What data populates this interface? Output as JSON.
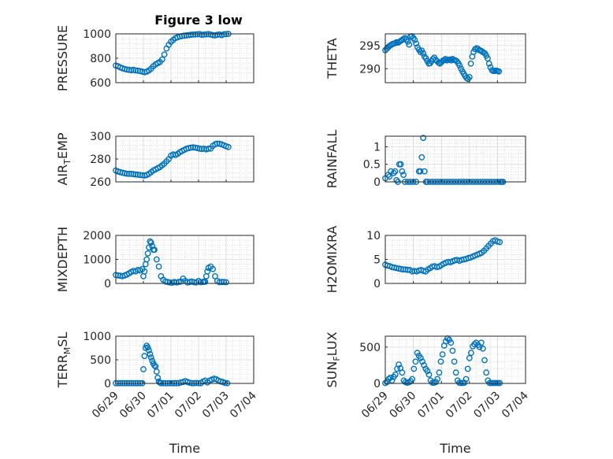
{
  "figure": {
    "title": "Figure 3 low"
  },
  "style": {
    "marker_color": "#0072BD",
    "axis_color": "#262626",
    "grid_color": "#dcdcdc"
  },
  "chart_data": [
    {
      "type": "scatter",
      "ylabel": "PRESSURE",
      "ylim": [
        600,
        1000
      ],
      "yticks": [
        "600",
        "800",
        "1000"
      ],
      "ytick_values": [
        600,
        800,
        1000
      ],
      "xlabel": "",
      "xticks": [
        "06/29",
        "06/30",
        "07/01",
        "07/02",
        "07/03",
        "07/04"
      ],
      "xlim": [
        0,
        5
      ],
      "grid": true,
      "x": [
        0.0,
        0.08,
        0.16,
        0.24,
        0.32,
        0.4,
        0.48,
        0.56,
        0.64,
        0.72,
        0.8,
        0.88,
        0.96,
        1.04,
        1.12,
        1.2,
        1.28,
        1.36,
        1.44,
        1.52,
        1.6,
        1.68,
        1.76,
        1.84,
        1.92,
        2.0,
        2.08,
        2.16,
        2.24,
        2.32,
        2.4,
        2.48,
        2.56,
        2.64,
        2.72,
        2.8,
        2.88,
        2.96,
        3.04,
        3.12,
        3.2,
        3.28,
        3.36,
        3.44,
        3.52,
        3.6,
        3.68,
        3.76,
        3.84,
        3.92,
        4.0,
        4.08
      ],
      "y": [
        740,
        735,
        725,
        718,
        712,
        708,
        705,
        702,
        705,
        700,
        698,
        695,
        690,
        685,
        690,
        700,
        715,
        735,
        750,
        760,
        770,
        790,
        830,
        880,
        910,
        935,
        950,
        965,
        972,
        978,
        982,
        985,
        988,
        990,
        992,
        994,
        995,
        997,
        998,
        992,
        994,
        996,
        998,
        994,
        990,
        988,
        992,
        995,
        990,
        997,
        998,
        1000
      ]
    },
    {
      "type": "scatter",
      "ylabel": "THETA",
      "ylim": [
        287,
        297.5
      ],
      "yticks": [
        "290",
        "295"
      ],
      "ytick_values": [
        290,
        295
      ],
      "xlabel": "",
      "xticks": [
        "06/29",
        "06/30",
        "07/01",
        "07/02",
        "07/03",
        "07/04"
      ],
      "xlim": [
        0,
        5
      ],
      "grid": true,
      "x": [
        0.0,
        0.05,
        0.1,
        0.15,
        0.2,
        0.25,
        0.3,
        0.35,
        0.4,
        0.45,
        0.5,
        0.55,
        0.6,
        0.65,
        0.7,
        0.75,
        0.8,
        0.85,
        0.9,
        0.95,
        1.0,
        1.05,
        1.1,
        1.15,
        1.2,
        1.25,
        1.3,
        1.35,
        1.4,
        1.45,
        1.5,
        1.55,
        1.6,
        1.65,
        1.7,
        1.75,
        1.8,
        1.85,
        1.9,
        1.95,
        2.0,
        2.05,
        2.1,
        2.15,
        2.2,
        2.25,
        2.3,
        2.35,
        2.4,
        2.45,
        2.5,
        2.55,
        2.6,
        2.65,
        2.7,
        2.75,
        2.8,
        2.85,
        2.9,
        2.95,
        3.0,
        3.05,
        3.1,
        3.15,
        3.2,
        3.25,
        3.3,
        3.35,
        3.4,
        3.45,
        3.5,
        3.55,
        3.6,
        3.65,
        3.7,
        3.75,
        3.8,
        3.85,
        3.9,
        3.95,
        4.0,
        4.05
      ],
      "y": [
        294.0,
        294.3,
        294.6,
        294.9,
        295.1,
        295.3,
        295.4,
        295.5,
        295.7,
        295.6,
        295.8,
        296.0,
        296.2,
        296.4,
        296.6,
        296.3,
        295.8,
        295.2,
        296.9,
        297.0,
        296.6,
        296.2,
        295.4,
        294.6,
        294.1,
        293.6,
        293.9,
        293.3,
        292.6,
        292.2,
        291.6,
        291.1,
        291.2,
        291.6,
        292.1,
        292.4,
        291.9,
        291.6,
        291.3,
        291.1,
        291.4,
        291.7,
        291.9,
        292.1,
        291.8,
        291.9,
        292.0,
        291.8,
        292.1,
        291.9,
        291.8,
        291.6,
        291.2,
        290.7,
        290.0,
        289.4,
        288.9,
        288.4,
        288.0,
        287.8,
        288.2,
        291.1,
        292.6,
        293.6,
        294.2,
        294.4,
        294.3,
        294.0,
        293.9,
        293.7,
        293.5,
        293.3,
        292.8,
        292.2,
        291.1,
        290.3,
        289.7,
        289.5,
        289.5,
        289.6,
        289.5,
        289.4
      ]
    },
    {
      "type": "scatter",
      "ylabel": "AIR_TEMP",
      "ylim": [
        260,
        300
      ],
      "yticks": [
        "260",
        "280",
        "300"
      ],
      "ytick_values": [
        260,
        280,
        300
      ],
      "xlabel": "",
      "xticks": [
        "06/29",
        "06/30",
        "07/01",
        "07/02",
        "07/03",
        "07/04"
      ],
      "xlim": [
        0,
        5
      ],
      "grid": true,
      "x": [
        0.0,
        0.08,
        0.16,
        0.24,
        0.32,
        0.4,
        0.48,
        0.56,
        0.64,
        0.72,
        0.8,
        0.88,
        0.96,
        1.04,
        1.12,
        1.2,
        1.28,
        1.36,
        1.44,
        1.52,
        1.6,
        1.68,
        1.76,
        1.84,
        1.92,
        2.0,
        2.08,
        2.16,
        2.24,
        2.32,
        2.4,
        2.48,
        2.56,
        2.64,
        2.72,
        2.8,
        2.88,
        2.96,
        3.04,
        3.12,
        3.2,
        3.28,
        3.36,
        3.44,
        3.52,
        3.6,
        3.68,
        3.76,
        3.84,
        3.92,
        4.0,
        4.08
      ],
      "y": [
        270,
        269,
        268.5,
        268,
        267.6,
        267.2,
        267,
        267,
        266.8,
        266.5,
        266.3,
        266,
        265.8,
        265.5,
        266,
        267,
        268.5,
        270,
        271,
        272,
        273,
        274.5,
        276,
        278,
        280,
        283,
        284,
        283.5,
        284.5,
        286,
        287,
        288,
        289,
        289.5,
        290,
        290.2,
        290,
        289.6,
        289,
        288.8,
        289,
        288.5,
        289,
        289.2,
        291.5,
        293,
        293.5,
        293.3,
        292.8,
        292,
        291.2,
        290.5
      ]
    },
    {
      "type": "scatter",
      "ylabel": "RAINFALL",
      "ylim": [
        0,
        1.3
      ],
      "yticks": [
        "0",
        "0.5",
        "1"
      ],
      "ytick_values": [
        0,
        0.5,
        1
      ],
      "xlabel": "",
      "xticks": [
        "06/29",
        "06/30",
        "07/01",
        "07/02",
        "07/03",
        "07/04"
      ],
      "xlim": [
        0,
        5
      ],
      "grid": true,
      "x": [
        0.0,
        0.1,
        0.15,
        0.2,
        0.3,
        0.35,
        0.4,
        0.45,
        0.5,
        0.55,
        0.6,
        0.65,
        0.7,
        0.8,
        0.9,
        1.0,
        1.1,
        1.2,
        1.25,
        1.3,
        1.35,
        1.4,
        1.45,
        1.5,
        1.6,
        1.7,
        1.8,
        1.9,
        2.0,
        2.1,
        2.2,
        2.3,
        2.4,
        2.5,
        2.6,
        2.7,
        2.8,
        2.9,
        3.0,
        3.1,
        3.2,
        3.3,
        3.4,
        3.5,
        3.6,
        3.7,
        3.8,
        3.9,
        4.0,
        4.1,
        4.15,
        4.2
      ],
      "y": [
        0.1,
        0.2,
        0.15,
        0.3,
        0.25,
        0.3,
        0.05,
        0.0,
        0.5,
        0.5,
        0.3,
        0.2,
        0.0,
        0.0,
        0.0,
        0.0,
        0.0,
        0.3,
        0.3,
        0.7,
        1.25,
        0.3,
        0.0,
        0.0,
        0.0,
        0.0,
        0.0,
        0.0,
        0.0,
        0.0,
        0.0,
        0.0,
        0.0,
        0.0,
        0.0,
        0.0,
        0.0,
        0.0,
        0.0,
        0.0,
        0.0,
        0.0,
        0.0,
        0.0,
        0.0,
        0.0,
        0.0,
        0.0,
        0.0,
        0.0,
        0.0,
        0.0
      ]
    },
    {
      "type": "scatter",
      "ylabel": "MIXDEPTH",
      "ylim": [
        0,
        2000
      ],
      "yticks": [
        "0",
        "1000",
        "2000"
      ],
      "ytick_values": [
        0,
        1000,
        2000
      ],
      "xlabel": "",
      "xticks": [
        "06/29",
        "06/30",
        "07/01",
        "07/02",
        "07/03",
        "07/04"
      ],
      "xlim": [
        0,
        5
      ],
      "grid": true,
      "x": [
        0.0,
        0.08,
        0.16,
        0.24,
        0.32,
        0.4,
        0.48,
        0.56,
        0.64,
        0.72,
        0.8,
        0.88,
        0.96,
        1.0,
        1.04,
        1.08,
        1.12,
        1.16,
        1.2,
        1.24,
        1.28,
        1.32,
        1.36,
        1.4,
        1.48,
        1.56,
        1.64,
        1.72,
        1.8,
        1.88,
        1.96,
        2.04,
        2.12,
        2.2,
        2.28,
        2.36,
        2.44,
        2.52,
        2.6,
        2.68,
        2.76,
        2.84,
        2.92,
        3.0,
        3.08,
        3.16,
        3.2,
        3.24,
        3.28,
        3.32,
        3.36,
        3.44,
        3.52,
        3.6,
        3.68,
        3.76,
        3.84,
        3.92,
        4.0
      ],
      "y": [
        350,
        330,
        320,
        300,
        330,
        370,
        420,
        480,
        520,
        500,
        560,
        540,
        600,
        300,
        500,
        800,
        1000,
        1250,
        1500,
        1750,
        1700,
        1550,
        1400,
        1400,
        1000,
        700,
        300,
        150,
        80,
        60,
        40,
        30,
        60,
        40,
        60,
        80,
        200,
        100,
        40,
        60,
        80,
        50,
        40,
        100,
        50,
        60,
        80,
        70,
        300,
        500,
        650,
        700,
        600,
        300,
        100,
        50,
        60,
        60,
        50
      ]
    },
    {
      "type": "scatter",
      "ylabel": "H2OMIXRA",
      "ylim": [
        0,
        10
      ],
      "yticks": [
        "0",
        "5",
        "10"
      ],
      "ytick_values": [
        0,
        5,
        10
      ],
      "xlabel": "",
      "xticks": [
        "06/29",
        "06/30",
        "07/01",
        "07/02",
        "07/03",
        "07/04"
      ],
      "xlim": [
        0,
        5
      ],
      "grid": true,
      "x": [
        0.0,
        0.08,
        0.16,
        0.24,
        0.32,
        0.4,
        0.48,
        0.56,
        0.64,
        0.72,
        0.8,
        0.88,
        0.96,
        1.04,
        1.12,
        1.2,
        1.28,
        1.36,
        1.44,
        1.52,
        1.6,
        1.68,
        1.76,
        1.84,
        1.92,
        2.0,
        2.08,
        2.16,
        2.24,
        2.32,
        2.4,
        2.48,
        2.56,
        2.64,
        2.72,
        2.8,
        2.88,
        2.96,
        3.04,
        3.12,
        3.2,
        3.28,
        3.36,
        3.44,
        3.52,
        3.6,
        3.68,
        3.76,
        3.84,
        3.92,
        4.0,
        4.08
      ],
      "y": [
        3.9,
        3.7,
        3.6,
        3.4,
        3.3,
        3.2,
        3.1,
        3.0,
        2.9,
        2.9,
        2.8,
        2.8,
        2.5,
        2.6,
        2.5,
        2.7,
        2.8,
        2.6,
        2.5,
        2.9,
        3.2,
        3.5,
        3.6,
        3.4,
        3.5,
        3.8,
        4.1,
        4.3,
        4.5,
        4.4,
        4.6,
        4.8,
        4.9,
        4.7,
        4.9,
        5.0,
        5.1,
        5.3,
        5.4,
        5.6,
        5.8,
        6.0,
        6.2,
        6.4,
        6.8,
        7.3,
        7.8,
        8.3,
        8.8,
        9.0,
        8.7,
        8.6
      ]
    },
    {
      "type": "scatter",
      "ylabel": "TERR_MSL",
      "ylim": [
        0,
        1000
      ],
      "yticks": [
        "0",
        "500",
        "1000"
      ],
      "ytick_values": [
        0,
        500,
        1000
      ],
      "xlabel": "Time",
      "xticks": [
        "06/29",
        "06/30",
        "07/01",
        "07/02",
        "07/03",
        "07/04"
      ],
      "xlim": [
        0,
        5
      ],
      "grid": true,
      "x": [
        0.0,
        0.08,
        0.16,
        0.24,
        0.32,
        0.4,
        0.48,
        0.56,
        0.64,
        0.72,
        0.8,
        0.88,
        0.96,
        1.0,
        1.04,
        1.08,
        1.12,
        1.16,
        1.2,
        1.24,
        1.28,
        1.32,
        1.36,
        1.4,
        1.44,
        1.48,
        1.52,
        1.56,
        1.6,
        1.64,
        1.72,
        1.8,
        1.88,
        1.96,
        2.04,
        2.12,
        2.2,
        2.28,
        2.36,
        2.44,
        2.52,
        2.6,
        2.68,
        2.76,
        2.84,
        2.92,
        3.0,
        3.08,
        3.16,
        3.24,
        3.32,
        3.4,
        3.48,
        3.56,
        3.64,
        3.72,
        3.8,
        3.88,
        3.96,
        4.04
      ],
      "y": [
        5,
        5,
        5,
        5,
        5,
        5,
        5,
        5,
        5,
        5,
        5,
        5,
        5,
        300,
        580,
        750,
        800,
        760,
        700,
        620,
        550,
        480,
        420,
        380,
        360,
        250,
        120,
        40,
        15,
        5,
        5,
        5,
        5,
        5,
        5,
        5,
        5,
        5,
        20,
        30,
        50,
        30,
        15,
        5,
        5,
        10,
        5,
        5,
        40,
        60,
        20,
        60,
        80,
        100,
        90,
        60,
        40,
        30,
        10,
        5
      ]
    },
    {
      "type": "scatter",
      "ylabel": "SUN_FLUX",
      "ylim": [
        0,
        650
      ],
      "yticks": [
        "0",
        "500"
      ],
      "ytick_values": [
        0,
        500
      ],
      "xlabel": "Time",
      "xticks": [
        "06/29",
        "06/30",
        "07/01",
        "07/02",
        "07/03",
        "07/04"
      ],
      "xlim": [
        0,
        5
      ],
      "grid": true,
      "x": [
        0.0,
        0.06,
        0.12,
        0.18,
        0.24,
        0.3,
        0.36,
        0.42,
        0.48,
        0.54,
        0.6,
        0.66,
        0.72,
        0.78,
        0.84,
        0.9,
        0.96,
        1.02,
        1.08,
        1.14,
        1.2,
        1.26,
        1.32,
        1.38,
        1.44,
        1.5,
        1.56,
        1.62,
        1.68,
        1.74,
        1.8,
        1.86,
        1.92,
        1.98,
        2.04,
        2.1,
        2.16,
        2.22,
        2.28,
        2.34,
        2.4,
        2.46,
        2.52,
        2.58,
        2.64,
        2.7,
        2.76,
        2.82,
        2.88,
        2.94,
        3.0,
        3.06,
        3.12,
        3.18,
        3.24,
        3.3,
        3.36,
        3.42,
        3.48,
        3.54,
        3.6,
        3.66,
        3.72,
        3.78,
        3.84,
        3.9,
        3.96,
        4.02,
        4.08
      ],
      "y": [
        5,
        20,
        60,
        80,
        40,
        90,
        120,
        200,
        260,
        210,
        150,
        40,
        20,
        10,
        15,
        30,
        60,
        200,
        300,
        420,
        380,
        350,
        300,
        250,
        200,
        170,
        120,
        40,
        10,
        10,
        20,
        60,
        150,
        300,
        400,
        520,
        580,
        620,
        600,
        560,
        450,
        300,
        150,
        40,
        10,
        5,
        5,
        10,
        60,
        200,
        350,
        420,
        510,
        540,
        560,
        530,
        500,
        560,
        480,
        320,
        150,
        40,
        5,
        5,
        5,
        5,
        5,
        5,
        5
      ]
    }
  ]
}
